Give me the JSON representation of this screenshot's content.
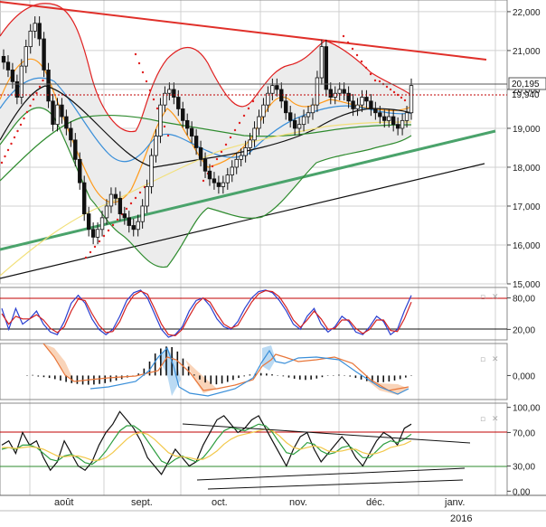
{
  "chart_data": [
    {
      "type": "candlestick",
      "panel": "price",
      "ylim": [
        15000,
        22300
      ],
      "y_ticks": [
        "15,000",
        "16,000",
        "17,000",
        "18,000",
        "19,000",
        "20,000",
        "21,000",
        "22,000"
      ],
      "y_tick_values": [
        15000,
        16000,
        17000,
        18000,
        19000,
        20000,
        21000,
        22000
      ],
      "last_value_label": "20,195",
      "last_value": 20195,
      "previous_close_label": "19,940",
      "previous_close": 19940,
      "grid": true,
      "series": [
        {
          "name": "",
          "kind": "close",
          "values": [
            20700,
            20500,
            20200,
            19800,
            20600,
            21100,
            21500,
            21700,
            21300,
            20500,
            19700,
            19100,
            19600,
            19300,
            19000,
            18700,
            18200,
            17600,
            16800,
            16400,
            16200,
            16400,
            16700,
            17000,
            17300,
            17200,
            16800,
            16700,
            16500,
            16400,
            16600,
            17000,
            17500,
            18300,
            18800,
            19600,
            19900,
            20000,
            19800,
            19500,
            19200,
            19000,
            18800,
            18500,
            18200,
            17900,
            17700,
            17600,
            17500,
            17600,
            17800,
            18000,
            18200,
            18300,
            18500,
            18700,
            19000,
            19300,
            19600,
            19900,
            20100,
            20000,
            19700,
            19400,
            19200,
            19000,
            19100,
            19300,
            19400,
            19600,
            20300,
            21100,
            20000,
            19800,
            19900,
            20000,
            19900,
            19700,
            19500,
            19600,
            19800,
            19700,
            19500,
            19400,
            19300,
            19200,
            19300,
            19100,
            19000,
            19200,
            19400,
            20100
          ]
        }
      ],
      "overlays": [
        {
          "name": "",
          "kind": "bollinger",
          "color": "#d40000",
          "note": "upper/lower bands"
        },
        {
          "name": "",
          "kind": "moving_average",
          "color": "#ff8c00"
        },
        {
          "name": "",
          "kind": "moving_average",
          "color": "#3a8fd9"
        },
        {
          "name": "",
          "kind": "moving_average",
          "color": "#111111"
        },
        {
          "name": "",
          "kind": "moving_average",
          "color": "#2e8b2e"
        },
        {
          "name": "",
          "kind": "moving_average",
          "color": "#f2e07a"
        },
        {
          "name": "",
          "kind": "parabolic_sar",
          "color": "#e02020"
        }
      ],
      "trendlines": [
        {
          "color": "#e0302a",
          "from": [
            0,
            22100
          ],
          "to": [
            130,
            20900
          ]
        },
        {
          "color": "#4aa36b",
          "from": [
            0,
            15700
          ],
          "to": [
            130,
            19000
          ]
        },
        {
          "color": "#111111",
          "from": [
            0,
            15000
          ],
          "to": [
            130,
            18100
          ]
        }
      ]
    },
    {
      "type": "line",
      "panel": "stochastic",
      "ylim": [
        0,
        100
      ],
      "y_ticks": [
        "80,00",
        "20,00"
      ],
      "y_tick_values": [
        80,
        20
      ],
      "series": [
        {
          "name": "",
          "color": "#2a3fd0",
          "values": [
            60,
            20,
            60,
            30,
            40,
            55,
            30,
            15,
            10,
            35,
            70,
            85,
            70,
            40,
            20,
            10,
            20,
            45,
            75,
            90,
            95,
            80,
            50,
            20,
            5,
            10,
            25,
            55,
            75,
            80,
            65,
            40,
            25,
            20,
            35,
            60,
            80,
            92,
            95,
            90,
            75,
            55,
            30,
            20,
            45,
            60,
            30,
            15,
            25,
            45,
            35,
            15,
            10,
            25,
            45,
            35,
            10,
            20,
            55,
            85
          ]
        },
        {
          "name": "",
          "color": "#d42020",
          "values": [
            50,
            30,
            45,
            40,
            40,
            48,
            38,
            22,
            14,
            25,
            55,
            78,
            75,
            50,
            28,
            14,
            16,
            35,
            65,
            85,
            93,
            87,
            60,
            30,
            10,
            8,
            20,
            45,
            68,
            80,
            72,
            50,
            30,
            22,
            28,
            50,
            72,
            88,
            94,
            92,
            82,
            62,
            38,
            24,
            38,
            55,
            40,
            20,
            22,
            38,
            38,
            22,
            12,
            20,
            38,
            38,
            18,
            16,
            40,
            72
          ]
        }
      ]
    },
    {
      "type": "bar",
      "panel": "macd_histogram",
      "ylim": [
        -1.2,
        1.6
      ],
      "y_ticks": [
        "0,000"
      ],
      "y_tick_values": [
        0
      ],
      "values": [
        0.02,
        0.03,
        -0.05,
        -0.08,
        -0.12,
        -0.18,
        -0.25,
        -0.32,
        -0.38,
        -0.42,
        -0.45,
        -0.46,
        -0.45,
        -0.42,
        -0.38,
        -0.32,
        -0.25,
        -0.18,
        -0.1,
        -0.02,
        0.1,
        0.35,
        0.7,
        1.1,
        1.35,
        1.45,
        1.42,
        1.2,
        0.85,
        0.45,
        0.05,
        -0.2,
        -0.35,
        -0.42,
        -0.44,
        -0.4,
        -0.32,
        -0.22,
        -0.12,
        -0.04,
        0.05,
        0.1,
        0.12,
        0.1,
        0.06,
        0.02,
        -0.04,
        -0.1,
        -0.16,
        -0.2,
        -0.22,
        -0.2,
        -0.15,
        -0.08,
        -0.02,
        0.02,
        0.04,
        0.02,
        -0.05,
        -0.12,
        -0.2,
        -0.28,
        -0.32,
        -0.34,
        -0.33,
        -0.3,
        -0.25,
        -0.18,
        -0.1,
        -0.02
      ],
      "lines": [
        {
          "name": "",
          "color": "#e8763a",
          "values": [
            0.9,
            0.75,
            0.55,
            0.3,
            0.05,
            -0.15,
            -0.25,
            -0.3,
            -0.3,
            -0.25,
            -0.1,
            0.1,
            0.3,
            0.45,
            0.4,
            0.2,
            0.0,
            -0.15,
            -0.25,
            -0.28,
            -0.2,
            0.15,
            0.55,
            0.9,
            1.05,
            1.05,
            0.85,
            0.6,
            0.4,
            0.3,
            0.25,
            0.2,
            0.15,
            0.1,
            0.05,
            -0.05,
            -0.15,
            -0.2,
            -0.22,
            -0.2
          ]
        },
        {
          "name": "",
          "color": "#3a8fd9",
          "values": [
            0.2,
            0.1,
            -0.05,
            -0.2,
            -0.3,
            -0.38,
            -0.42,
            -0.42,
            -0.4,
            -0.3,
            -0.1,
            0.25,
            0.7,
            1.1,
            1.25,
            1.0,
            0.6,
            0.2,
            -0.1,
            -0.25,
            -0.3,
            -0.1,
            0.3,
            0.75,
            1.1,
            1.35,
            1.3,
            1.0,
            0.7,
            0.45,
            0.3,
            0.2,
            0.1,
            0.0,
            -0.1,
            -0.2,
            -0.28,
            -0.3,
            -0.28,
            -0.22
          ]
        }
      ]
    },
    {
      "type": "line",
      "panel": "rsi",
      "ylim": [
        -5,
        105
      ],
      "y_ticks": [
        "100,00",
        "70,00",
        "30,00",
        "0,00"
      ],
      "y_tick_values": [
        100,
        70,
        30,
        0
      ],
      "series": [
        {
          "name": "",
          "color": "#111111",
          "values": [
            55,
            60,
            45,
            70,
            55,
            60,
            40,
            25,
            35,
            60,
            45,
            30,
            25,
            35,
            55,
            70,
            80,
            95,
            85,
            75,
            60,
            40,
            30,
            20,
            35,
            50,
            40,
            30,
            35,
            55,
            70,
            85,
            90,
            80,
            70,
            75,
            85,
            90,
            75,
            60,
            45,
            30,
            50,
            65,
            70,
            50,
            35,
            45,
            55,
            65,
            55,
            40,
            30,
            45,
            60,
            70,
            65,
            55,
            75,
            80
          ]
        },
        {
          "name": "",
          "color": "#2e9e40",
          "values": [
            50,
            52,
            50,
            55,
            55,
            52,
            45,
            38,
            36,
            42,
            44,
            40,
            34,
            32,
            38,
            48,
            60,
            72,
            78,
            78,
            72,
            60,
            48,
            36,
            32,
            38,
            42,
            38,
            35,
            40,
            50,
            62,
            72,
            76,
            74,
            72,
            76,
            80,
            78,
            70,
            58,
            46,
            44,
            50,
            58,
            56,
            48,
            44,
            46,
            52,
            54,
            48,
            40,
            40,
            48,
            56,
            60,
            58,
            62,
            68
          ]
        },
        {
          "name": "",
          "color": "#f2c84a",
          "values": [
            52,
            52,
            51,
            52,
            53,
            52,
            50,
            46,
            42,
            41,
            42,
            42,
            40,
            37,
            37,
            40,
            46,
            54,
            62,
            68,
            70,
            68,
            62,
            54,
            46,
            42,
            41,
            40,
            38,
            38,
            42,
            48,
            56,
            62,
            66,
            68,
            70,
            72,
            74,
            72,
            66,
            58,
            52,
            50,
            52,
            54,
            52,
            48,
            47,
            48,
            50,
            50,
            46,
            44,
            45,
            48,
            52,
            54,
            56,
            60
          ]
        }
      ],
      "trendlines": [
        {
          "color": "#111111",
          "from": [
            202,
            469
          ],
          "to": [
            520,
            490
          ]
        },
        {
          "color": "#111111",
          "from": [
            218,
            531
          ],
          "to": [
            514,
            518
          ]
        },
        {
          "color": "#111111",
          "from": [
            230,
            541
          ],
          "to": [
            512,
            531
          ]
        }
      ]
    }
  ],
  "x_axis": {
    "months": [
      "août",
      "sept.",
      "oct.",
      "nov.",
      "déc.",
      "janv."
    ],
    "year": "2016"
  },
  "colors": {
    "background": "#ffffff",
    "grid": "#cfcfcf",
    "band_fill": "#ececec",
    "price_up": "#ffffff",
    "price_down": "#111111",
    "level_line": "#c00000"
  },
  "icons": {
    "panel_max": "maximize-icon",
    "panel_close": "close-icon"
  }
}
